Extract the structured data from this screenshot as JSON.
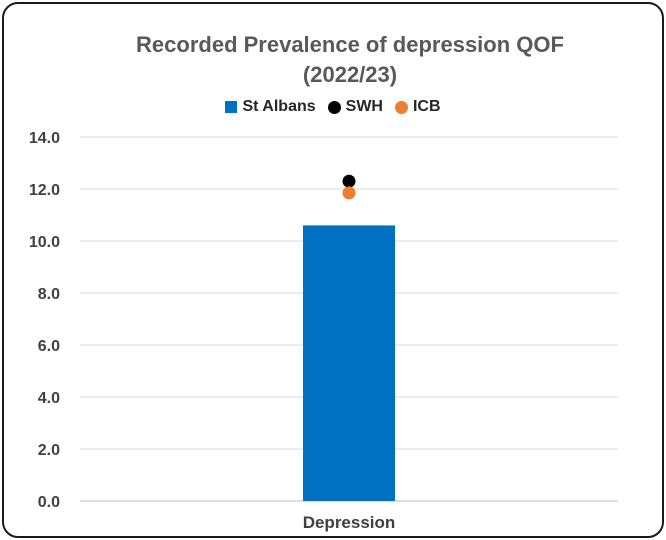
{
  "chart_data": {
    "type": "bar",
    "title_line1": "Recorded Prevalence of depression QOF",
    "title_line2": "(2022/23)",
    "categories": [
      "Depression"
    ],
    "series": [
      {
        "name": "St Albans",
        "kind": "bar",
        "color": "#0070c0",
        "values": [
          10.6
        ]
      },
      {
        "name": "SWH",
        "kind": "marker",
        "color": "#000000",
        "values": [
          12.3
        ]
      },
      {
        "name": "ICB",
        "kind": "marker",
        "color": "#ed7d31",
        "values": [
          11.85
        ]
      }
    ],
    "ylim": [
      0,
      14
    ],
    "yticks": [
      "0.0",
      "2.0",
      "4.0",
      "6.0",
      "8.0",
      "10.0",
      "12.0",
      "14.0"
    ],
    "ytick_values": [
      0,
      2,
      4,
      6,
      8,
      10,
      12,
      14
    ],
    "grid": true,
    "legend_position": "top"
  }
}
